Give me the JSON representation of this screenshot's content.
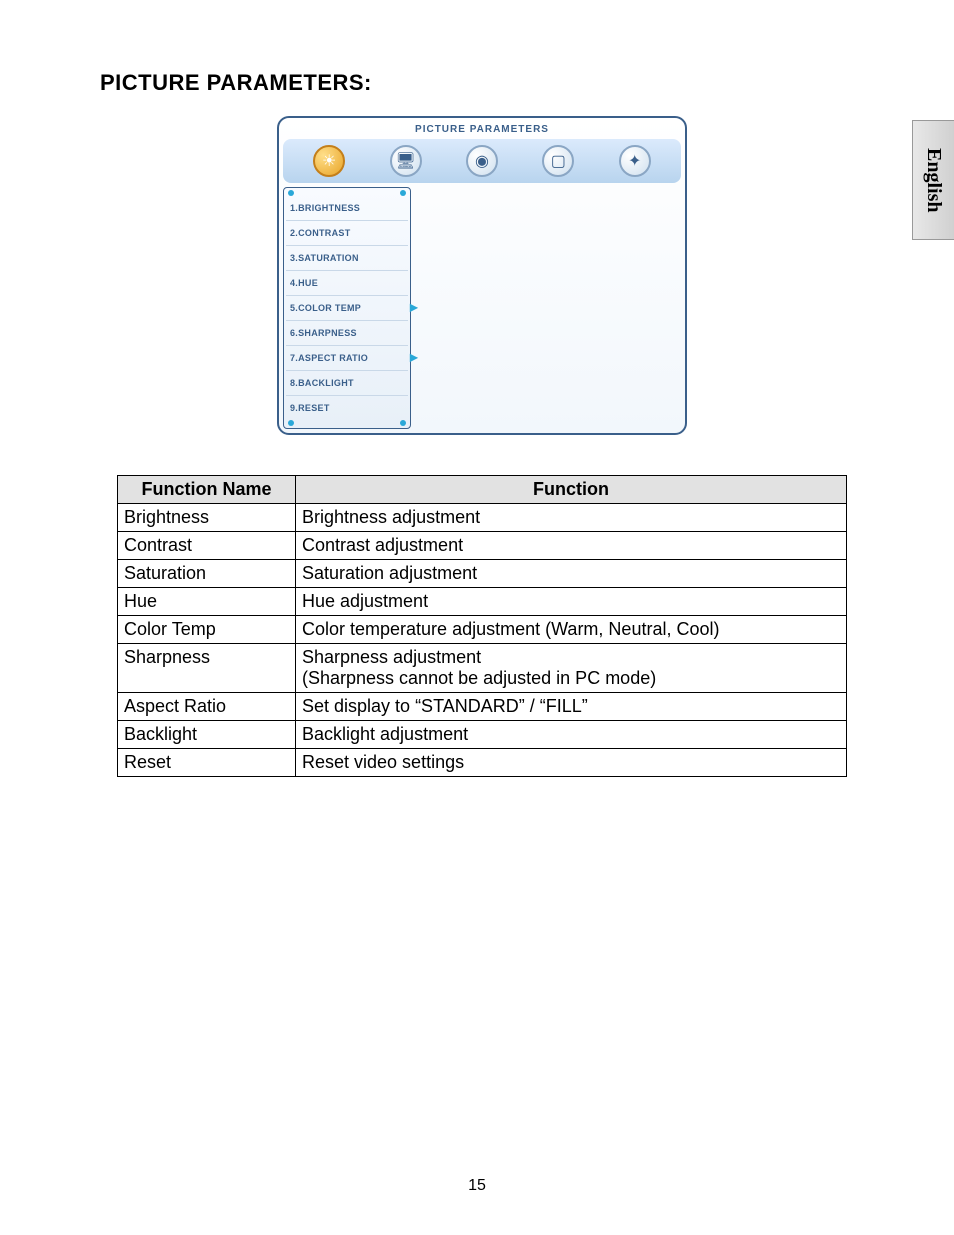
{
  "section_title": "PICTURE PARAMETERS:",
  "language_tab": "English",
  "page_number": "15",
  "osd": {
    "title": "PICTURE PARAMETERS",
    "icons": [
      {
        "name": "sun-icon",
        "glyph": "☀",
        "active": true
      },
      {
        "name": "pc-icon",
        "glyph": "🖥",
        "active": false
      },
      {
        "name": "audio-icon",
        "glyph": "◉",
        "active": false
      },
      {
        "name": "geometry-icon",
        "glyph": "▢",
        "active": false
      },
      {
        "name": "setup-icon",
        "glyph": "✦",
        "active": false
      }
    ],
    "menu_items": [
      {
        "label": "1.BRIGHTNESS",
        "has_arrow": false
      },
      {
        "label": "2.CONTRAST",
        "has_arrow": false
      },
      {
        "label": "3.SATURATION",
        "has_arrow": false
      },
      {
        "label": "4.HUE",
        "has_arrow": false
      },
      {
        "label": "5.COLOR TEMP",
        "has_arrow": true
      },
      {
        "label": "6.SHARPNESS",
        "has_arrow": false
      },
      {
        "label": "7.ASPECT RATIO",
        "has_arrow": true
      },
      {
        "label": "8.BACKLIGHT",
        "has_arrow": false
      },
      {
        "label": "9.RESET",
        "has_arrow": false
      }
    ]
  },
  "table": {
    "headers": [
      "Function Name",
      "Function"
    ],
    "rows": [
      [
        "Brightness",
        "Brightness adjustment"
      ],
      [
        "Contrast",
        "Contrast adjustment"
      ],
      [
        "Saturation",
        "Saturation adjustment"
      ],
      [
        "Hue",
        "Hue adjustment"
      ],
      [
        "Color Temp",
        "Color temperature adjustment (Warm, Neutral, Cool)"
      ],
      [
        "Sharpness",
        "Sharpness adjustment\n(Sharpness cannot be adjusted in PC mode)"
      ],
      [
        "Aspect Ratio",
        "Set display to “STANDARD” / “FILL”"
      ],
      [
        "Backlight",
        "Backlight adjustment"
      ],
      [
        "Reset",
        "Reset video settings"
      ]
    ]
  }
}
